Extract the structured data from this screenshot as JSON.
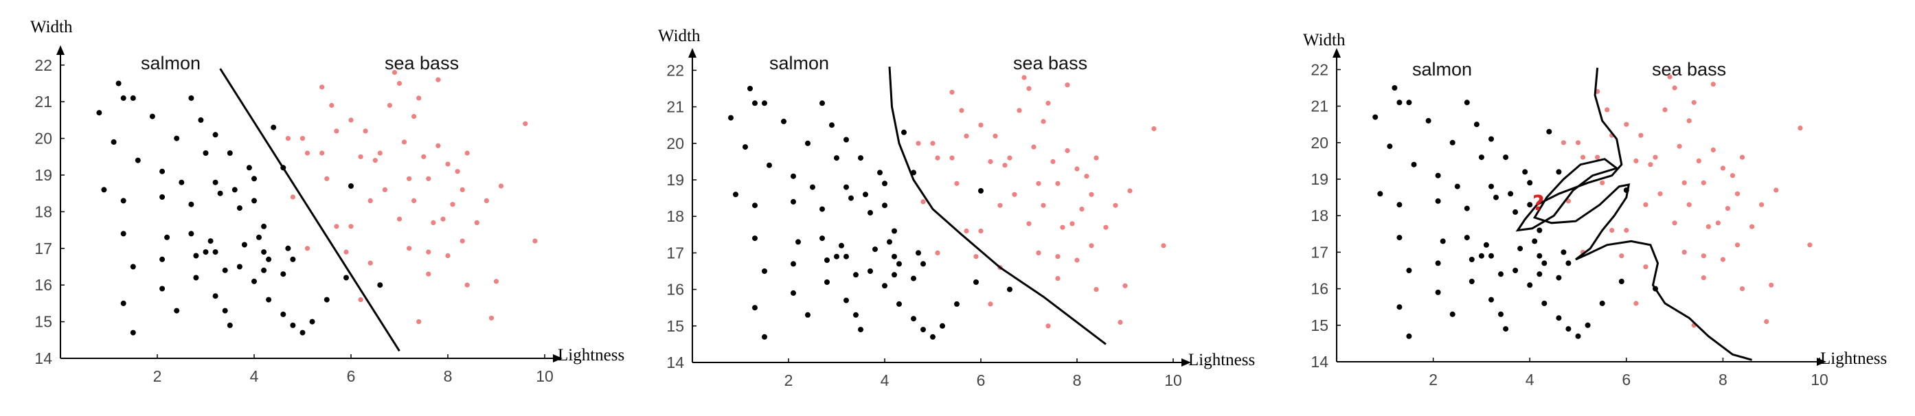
{
  "chart_data": [
    {
      "type": "scatter",
      "xlabel": "Lightness",
      "ylabel": "Width",
      "xlim": [
        0,
        11
      ],
      "ylim": [
        14,
        22
      ],
      "xticks": [
        "2",
        "4",
        "6",
        "8",
        "10"
      ],
      "yticks": [
        "14",
        "15",
        "16",
        "17",
        "18",
        "19",
        "20",
        "21",
        "22"
      ],
      "annotations": [
        "salmon",
        "sea bass"
      ],
      "boundary": "linear",
      "series": [
        {
          "name": "salmon",
          "color": "#000000",
          "points": [
            [
              0.8,
              20.7
            ],
            [
              1.2,
              21.5
            ],
            [
              1.5,
              21.1
            ],
            [
              1.3,
              21.1
            ],
            [
              1.1,
              19.9
            ],
            [
              0.9,
              18.6
            ],
            [
              1.3,
              18.3
            ],
            [
              1.6,
              19.4
            ],
            [
              1.3,
              17.4
            ],
            [
              1.5,
              16.5
            ],
            [
              1.3,
              15.5
            ],
            [
              1.5,
              14.7
            ],
            [
              1.9,
              20.6
            ],
            [
              2.1,
              19.1
            ],
            [
              2.1,
              18.4
            ],
            [
              2.2,
              17.3
            ],
            [
              2.1,
              16.7
            ],
            [
              2.1,
              15.9
            ],
            [
              2.4,
              20.0
            ],
            [
              2.7,
              21.1
            ],
            [
              2.9,
              20.5
            ],
            [
              3.2,
              20.1
            ],
            [
              3.0,
              19.6
            ],
            [
              2.5,
              18.8
            ],
            [
              2.7,
              18.2
            ],
            [
              2.7,
              17.4
            ],
            [
              2.8,
              16.8
            ],
            [
              2.8,
              16.2
            ],
            [
              3.1,
              17.2
            ],
            [
              3.3,
              18.5
            ],
            [
              3.2,
              18.8
            ],
            [
              3.5,
              19.6
            ],
            [
              3.6,
              18.6
            ],
            [
              3.7,
              18.1
            ],
            [
              3.0,
              16.9
            ],
            [
              3.2,
              16.9
            ],
            [
              3.4,
              16.4
            ],
            [
              3.2,
              15.7
            ],
            [
              3.4,
              15.3
            ],
            [
              3.5,
              14.9
            ],
            [
              3.9,
              19.2
            ],
            [
              4.0,
              18.9
            ],
            [
              4.0,
              18.3
            ],
            [
              4.2,
              17.6
            ],
            [
              4.3,
              16.7
            ],
            [
              4.2,
              16.4
            ],
            [
              4.3,
              15.6
            ],
            [
              4.4,
              20.3
            ],
            [
              4.6,
              19.2
            ],
            [
              4.1,
              17.3
            ],
            [
              3.7,
              16.5
            ],
            [
              4.0,
              16.1
            ],
            [
              4.6,
              15.2
            ],
            [
              4.8,
              14.9
            ],
            [
              4.6,
              16.3
            ],
            [
              4.8,
              16.7
            ],
            [
              4.7,
              17.0
            ],
            [
              5.0,
              14.7
            ],
            [
              5.2,
              15.0
            ],
            [
              5.5,
              15.6
            ],
            [
              5.9,
              16.2
            ],
            [
              6.0,
              18.7
            ],
            [
              6.6,
              16.0
            ],
            [
              4.2,
              16.9
            ],
            [
              2.4,
              15.3
            ],
            [
              3.8,
              17.1
            ]
          ]
        },
        {
          "name": "sea bass",
          "color": "#f08080",
          "points": [
            [
              4.7,
              20.0
            ],
            [
              5.0,
              20.0
            ],
            [
              5.1,
              19.6
            ],
            [
              5.4,
              21.4
            ],
            [
              5.6,
              20.9
            ],
            [
              5.4,
              19.6
            ],
            [
              5.5,
              18.9
            ],
            [
              5.7,
              20.2
            ],
            [
              6.0,
              20.5
            ],
            [
              6.3,
              20.2
            ],
            [
              6.2,
              19.5
            ],
            [
              6.5,
              19.4
            ],
            [
              6.4,
              18.3
            ],
            [
              6.0,
              17.6
            ],
            [
              5.7,
              17.6
            ],
            [
              5.9,
              16.9
            ],
            [
              6.4,
              16.6
            ],
            [
              6.2,
              15.6
            ],
            [
              6.9,
              21.8
            ],
            [
              7.0,
              21.5
            ],
            [
              6.8,
              20.9
            ],
            [
              7.3,
              20.6
            ],
            [
              7.4,
              21.1
            ],
            [
              7.8,
              21.6
            ],
            [
              7.1,
              19.9
            ],
            [
              7.5,
              19.5
            ],
            [
              7.6,
              18.9
            ],
            [
              7.3,
              18.3
            ],
            [
              7.0,
              17.8
            ],
            [
              7.2,
              17.0
            ],
            [
              7.6,
              16.9
            ],
            [
              7.6,
              16.3
            ],
            [
              7.4,
              15.0
            ],
            [
              7.8,
              19.8
            ],
            [
              8.0,
              19.3
            ],
            [
              8.2,
              19.1
            ],
            [
              8.4,
              19.6
            ],
            [
              8.3,
              18.6
            ],
            [
              8.1,
              18.2
            ],
            [
              7.9,
              17.8
            ],
            [
              8.0,
              16.8
            ],
            [
              8.4,
              16.0
            ],
            [
              8.6,
              17.7
            ],
            [
              8.8,
              18.3
            ],
            [
              8.9,
              15.1
            ],
            [
              9.0,
              16.1
            ],
            [
              9.1,
              18.7
            ],
            [
              9.6,
              20.4
            ],
            [
              9.8,
              17.2
            ],
            [
              4.8,
              18.4
            ],
            [
              5.1,
              17.0
            ],
            [
              6.7,
              18.6
            ],
            [
              7.2,
              18.9
            ],
            [
              7.7,
              17.7
            ],
            [
              8.3,
              17.2
            ],
            [
              6.6,
              19.6
            ]
          ]
        }
      ]
    },
    {
      "type": "scatter",
      "xlabel": "Lightness",
      "ylabel": "Width",
      "xlim": [
        0,
        11
      ],
      "ylim": [
        14,
        22
      ],
      "xticks": [
        "2",
        "4",
        "6",
        "8",
        "10"
      ],
      "yticks": [
        "14",
        "15",
        "16",
        "17",
        "18",
        "19",
        "20",
        "21",
        "22"
      ],
      "annotations": [
        "salmon",
        "sea bass"
      ],
      "boundary": "quadratic",
      "series_same_as_panel": 1
    },
    {
      "type": "scatter",
      "xlabel": "Lightness",
      "ylabel": "Width",
      "xlim": [
        0,
        11
      ],
      "ylim": [
        14,
        22
      ],
      "xticks": [
        "2",
        "4",
        "6",
        "8",
        "10"
      ],
      "yticks": [
        "14",
        "15",
        "16",
        "17",
        "18",
        "19",
        "20",
        "21",
        "22"
      ],
      "annotations": [
        "salmon",
        "sea bass",
        "?"
      ],
      "boundary": "complex",
      "series_same_as_panel": 1
    }
  ],
  "colors": {
    "salmon": "#000000",
    "sea_bass": "#f08080",
    "question": "#e0201b",
    "axis": "#000000"
  }
}
